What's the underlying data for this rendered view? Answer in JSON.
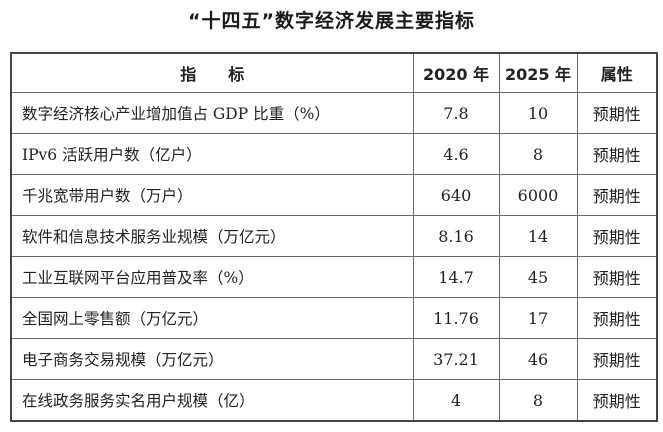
{
  "title": "“十四五”数字经济发展主要指标",
  "table": {
    "headers": {
      "indicator": "指　　标",
      "year_2020": "2020 年",
      "year_2025": "2025 年",
      "attribute": "属性"
    },
    "rows": [
      {
        "indicator": "数字经济核心产业增加值占 GDP 比重（%）",
        "v2020": "7.8",
        "v2025": "10",
        "attribute": "预期性"
      },
      {
        "indicator": "IPv6 活跃用户数（亿户）",
        "v2020": "4.6",
        "v2025": "8",
        "attribute": "预期性"
      },
      {
        "indicator": "千兆宽带用户数（万户）",
        "v2020": "640",
        "v2025": "6000",
        "attribute": "预期性"
      },
      {
        "indicator": "软件和信息技术服务业规模（万亿元）",
        "v2020": "8.16",
        "v2025": "14",
        "attribute": "预期性"
      },
      {
        "indicator": "工业互联网平台应用普及率（%）",
        "v2020": "14.7",
        "v2025": "45",
        "attribute": "预期性"
      },
      {
        "indicator": "全国网上零售额（万亿元）",
        "v2020": "11.76",
        "v2025": "17",
        "attribute": "预期性"
      },
      {
        "indicator": "电子商务交易规模（万亿元）",
        "v2020": "37.21",
        "v2025": "46",
        "attribute": "预期性"
      },
      {
        "indicator": "在线政务服务实名用户规模（亿）",
        "v2020": "4",
        "v2025": "8",
        "attribute": "预期性"
      }
    ]
  }
}
